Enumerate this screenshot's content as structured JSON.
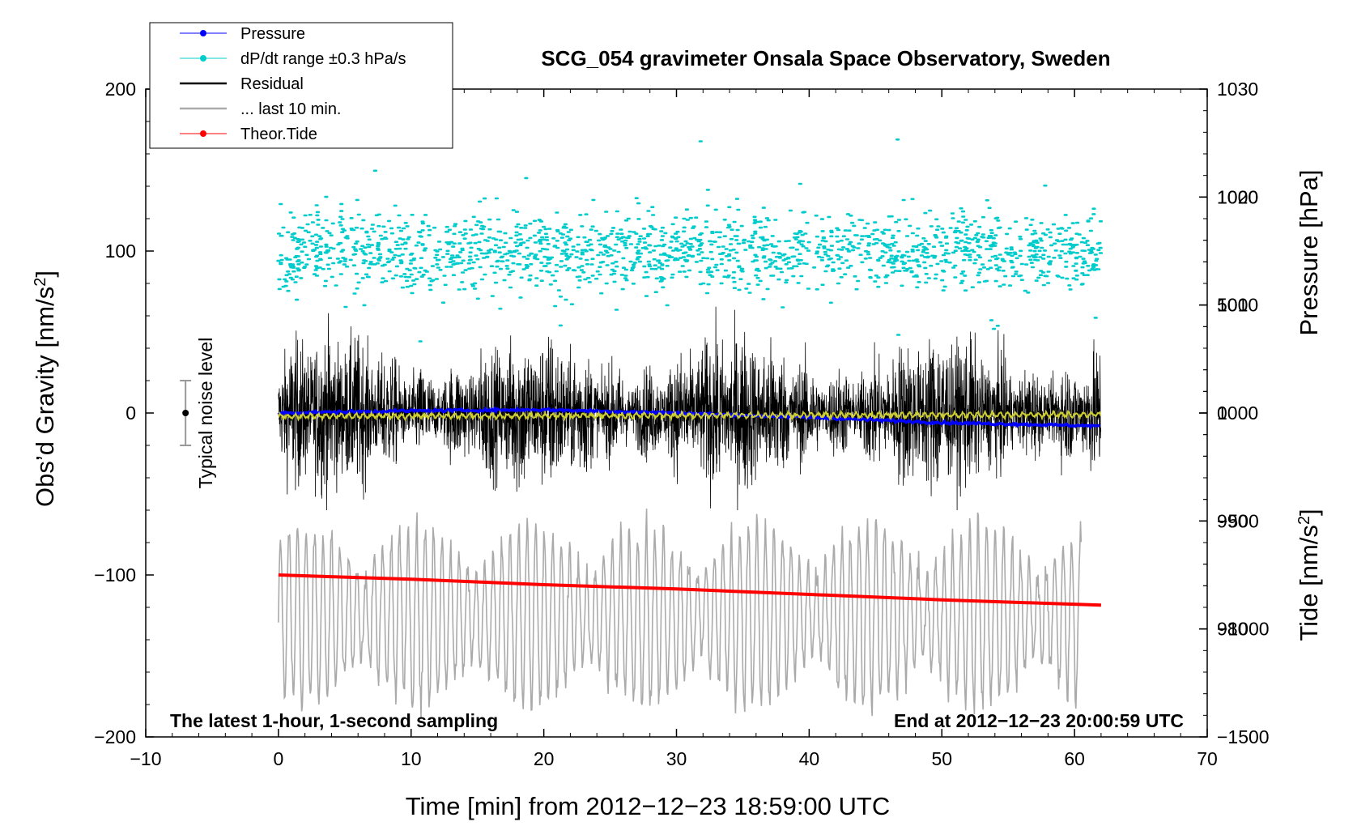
{
  "chart_data": {
    "type": "line",
    "title": "SCG_054 gravimeter Onsala Space Observatory, Sweden",
    "xlabel": "Time [min] from 2012−12−23 18:59:00 UTC",
    "ylabel_left": "Obs’d Gravity [nm/s",
    "ylabel_left_sup": "2",
    "ylabel_left_end": "]",
    "ylabel_right_top": "Pressure [hPa]",
    "ylabel_right_bottom": "Tide [nm/s",
    "ylabel_right_bottom_sup": "2",
    "ylabel_right_bottom_end": "]",
    "xlim": [
      -10,
      70
    ],
    "ylim_left": [
      -200,
      200
    ],
    "ylim_pressure": [
      970,
      1030
    ],
    "ylim_tide": [
      -1500,
      1500
    ],
    "x_ticks": [
      "−10",
      "0",
      "10",
      "20",
      "30",
      "40",
      "50",
      "60",
      "70"
    ],
    "y_left_ticks": [
      "200",
      "100",
      "0",
      "−100",
      "−200"
    ],
    "pressure_ticks": [
      "1030",
      "1020",
      "1010",
      "1000",
      "990",
      "980"
    ],
    "tide_ticks": [
      "1000",
      "500",
      "0",
      "−500",
      "−1000",
      "−1500"
    ],
    "annotation_left": "The latest 1-hour, 1-second sampling",
    "annotation_right": "End at 2012−12−23 20:00:59 UTC",
    "noise_label": "Typical noise level",
    "noise_level": [
      -20,
      20
    ],
    "legend": [
      {
        "label": "Pressure",
        "color": "#0000ff",
        "style": "line-dot"
      },
      {
        "label": "dP/dt range ±0.3 hPa/s",
        "color": "#00cccc",
        "style": "line-dot"
      },
      {
        "label": "Residual",
        "color": "#000000",
        "style": "line"
      },
      {
        "label": "... last 10 min.",
        "color": "#aaaaaa",
        "style": "line"
      },
      {
        "label": "Theor.Tide",
        "color": "#ff0000",
        "style": "line-dot"
      }
    ],
    "series": [
      {
        "name": "Pressure",
        "axis": "pressure",
        "color": "#0000ff",
        "x": [
          0,
          10,
          20,
          30,
          40,
          50,
          62
        ],
        "values": [
          1000.0,
          1000.2,
          1000.3,
          1000.0,
          999.6,
          999.1,
          998.8
        ]
      },
      {
        "name": "Theor.Tide",
        "axis": "tide",
        "color": "#ff0000",
        "x": [
          0,
          10,
          20,
          30,
          40,
          50,
          62
        ],
        "values": [
          -750,
          -770,
          -795,
          -815,
          -840,
          -865,
          -890
        ]
      },
      {
        "name": "Residual",
        "axis": "left",
        "color": "#000000",
        "amplitude": 35,
        "x": [
          0,
          62
        ],
        "values": [
          0,
          0
        ]
      },
      {
        "name": "Residual smoothed",
        "axis": "left",
        "color": "#cccc33",
        "x": [
          0,
          62
        ],
        "values": [
          -2,
          -1
        ]
      },
      {
        "name": "... last 10 min.",
        "axis": "left",
        "color": "#aaaaaa",
        "amplitude": 55,
        "x": [
          0,
          60.5
        ],
        "values": [
          -125,
          -125
        ]
      },
      {
        "name": "dP/dt range ±0.3 hPa/s",
        "axis": "left",
        "color": "#00cccc",
        "spread": 30,
        "x": [
          0,
          62
        ],
        "values": [
          100,
          100
        ]
      }
    ]
  }
}
